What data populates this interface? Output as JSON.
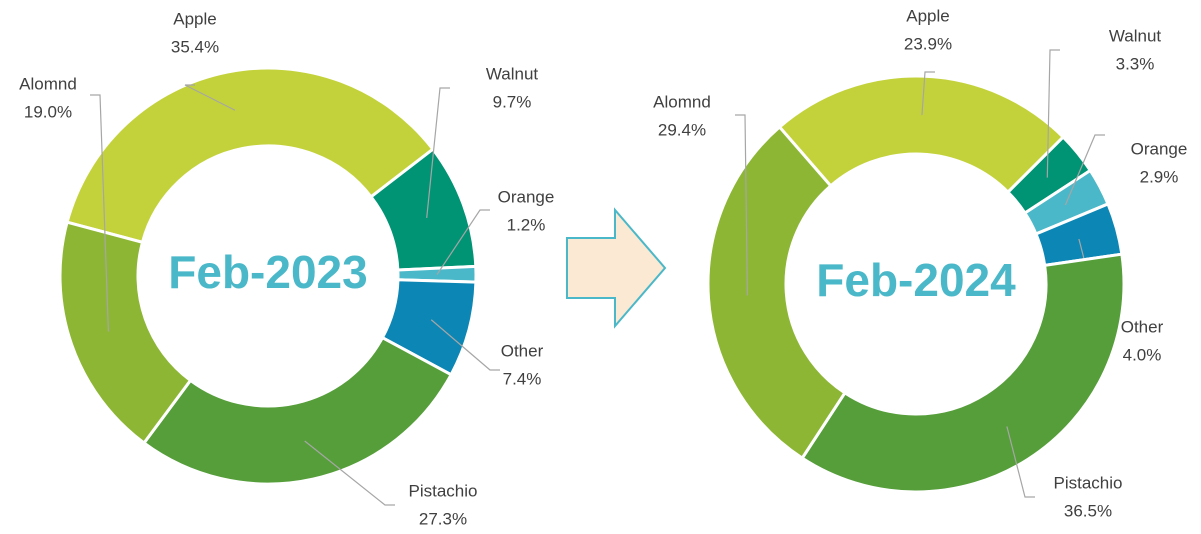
{
  "chart_data": [
    {
      "type": "donut",
      "center_label": "Feb-2023",
      "categories": [
        "Apple",
        "Walnut",
        "Orange",
        "Other",
        "Pistachio",
        "Alomnd"
      ],
      "values": [
        35.4,
        9.7,
        1.2,
        7.4,
        27.3,
        19.0
      ],
      "value_labels": [
        "35.4%",
        "9.7%",
        "1.2%",
        "7.4%",
        "27.3%",
        "19.0%"
      ],
      "colors": [
        "#c3d23a",
        "#009474",
        "#4ab8c8",
        "#0c86b4",
        "#559e3a",
        "#8db634"
      ]
    },
    {
      "type": "donut",
      "center_label": "Feb-2024",
      "categories": [
        "Apple",
        "Walnut",
        "Orange",
        "Other",
        "Pistachio",
        "Alomnd"
      ],
      "values": [
        23.9,
        3.3,
        2.9,
        4.0,
        36.5,
        29.4
      ],
      "value_labels": [
        "23.9%",
        "3.3%",
        "2.9%",
        "4.0%",
        "36.5%",
        "29.4%"
      ],
      "colors": [
        "#c3d23a",
        "#009474",
        "#4ab8c8",
        "#0c86b4",
        "#559e3a",
        "#8db634"
      ]
    }
  ]
}
